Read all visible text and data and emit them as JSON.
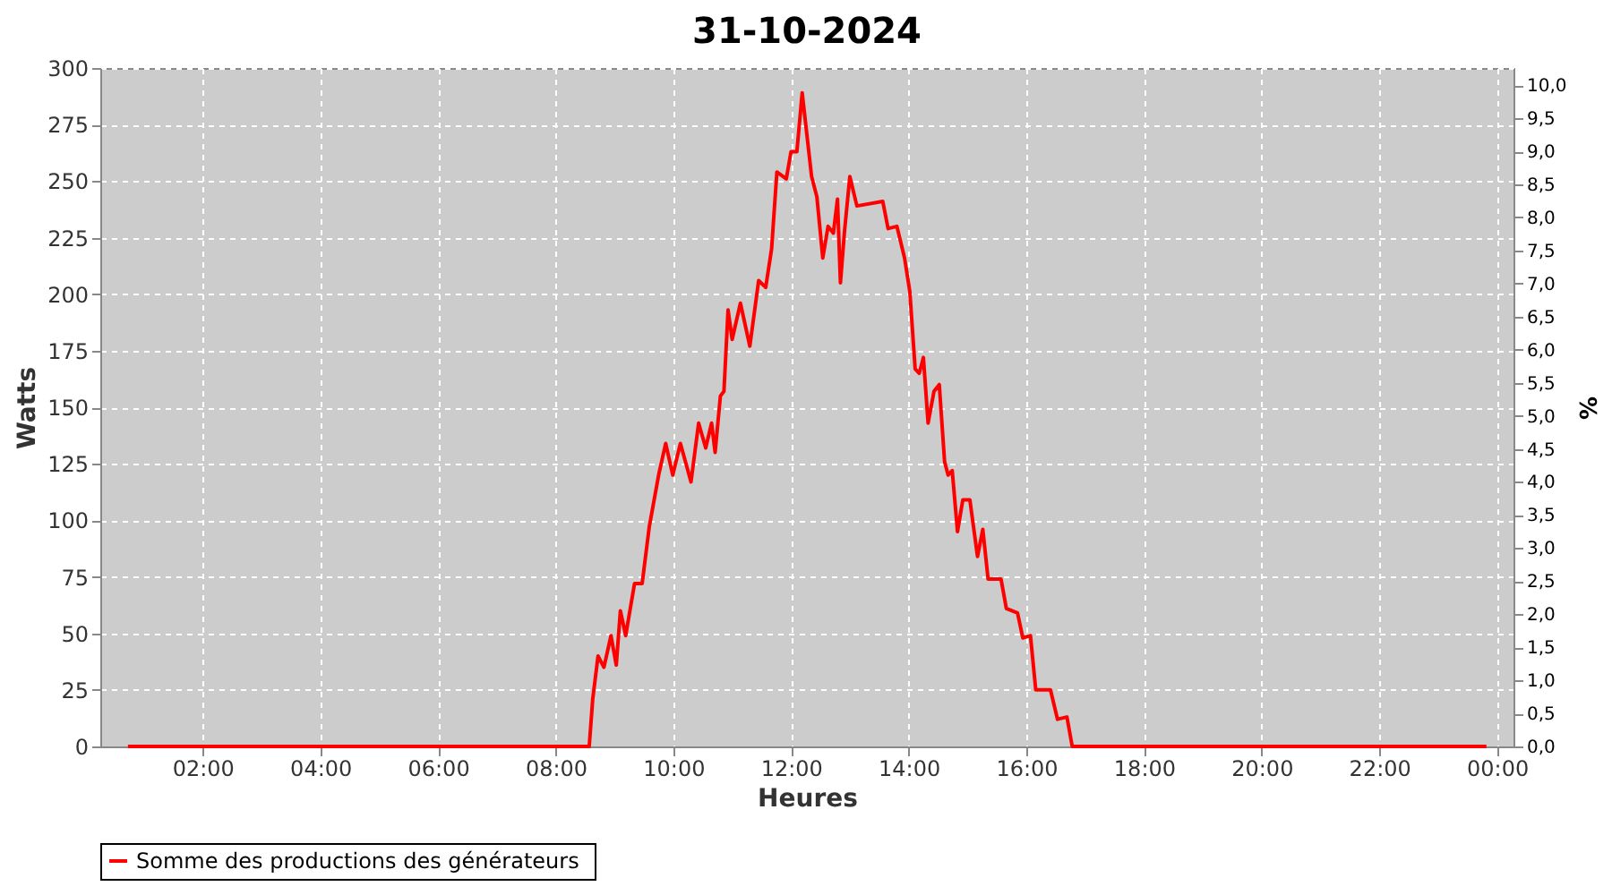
{
  "chart_data": {
    "type": "line",
    "title": "31-10-2024",
    "xlabel": "Heures",
    "ylabel": "Watts",
    "y2label": "%",
    "xlim": [
      0.26,
      24.28
    ],
    "xticks": [
      {
        "value": 2,
        "label": "02:00"
      },
      {
        "value": 4,
        "label": "04:00"
      },
      {
        "value": 6,
        "label": "06:00"
      },
      {
        "value": 8,
        "label": "08:00"
      },
      {
        "value": 10,
        "label": "10:00"
      },
      {
        "value": 12,
        "label": "12:00"
      },
      {
        "value": 14,
        "label": "14:00"
      },
      {
        "value": 16,
        "label": "16:00"
      },
      {
        "value": 18,
        "label": "18:00"
      },
      {
        "value": 20,
        "label": "20:00"
      },
      {
        "value": 22,
        "label": "22:00"
      },
      {
        "value": 24,
        "label": "00:00"
      }
    ],
    "ylim": [
      0,
      300
    ],
    "yticks": [
      0,
      25,
      50,
      75,
      100,
      125,
      150,
      175,
      200,
      225,
      250,
      275,
      300
    ],
    "y2lim": [
      0,
      10.26
    ],
    "y2ticks": [
      {
        "value": 0,
        "label": "0,0"
      },
      {
        "value": 0.5,
        "label": "0,5"
      },
      {
        "value": 1,
        "label": "1,0"
      },
      {
        "value": 1.5,
        "label": "1,5"
      },
      {
        "value": 2,
        "label": "2,0"
      },
      {
        "value": 2.5,
        "label": "2,5"
      },
      {
        "value": 3,
        "label": "3,0"
      },
      {
        "value": 3.5,
        "label": "3,5"
      },
      {
        "value": 4,
        "label": "4,0"
      },
      {
        "value": 4.5,
        "label": "4,5"
      },
      {
        "value": 5,
        "label": "5,0"
      },
      {
        "value": 5.5,
        "label": "5,5"
      },
      {
        "value": 6,
        "label": "6,0"
      },
      {
        "value": 6.5,
        "label": "6,5"
      },
      {
        "value": 7,
        "label": "7,0"
      },
      {
        "value": 7.5,
        "label": "7,5"
      },
      {
        "value": 8,
        "label": "8,0"
      },
      {
        "value": 8.5,
        "label": "8,5"
      },
      {
        "value": 9,
        "label": "9,0"
      },
      {
        "value": 9.5,
        "label": "9,5"
      },
      {
        "value": 10,
        "label": "10,0"
      }
    ],
    "grid": true,
    "legend": "bottom",
    "marker": "none",
    "line_style": "solid",
    "series": [
      {
        "name": "Somme des productions des  générateurs",
        "color": "#ff0000",
        "x": [
          0.73,
          8.57,
          8.63,
          8.72,
          8.82,
          8.94,
          9.03,
          9.1,
          9.19,
          9.34,
          9.47,
          9.59,
          9.75,
          9.87,
          9.99,
          10.12,
          10.3,
          10.43,
          10.55,
          10.65,
          10.71,
          10.8,
          10.86,
          10.93,
          11.0,
          11.14,
          11.3,
          11.45,
          11.57,
          11.67,
          11.76,
          11.92,
          12.0,
          12.1,
          12.19,
          12.35,
          12.44,
          12.54,
          12.63,
          12.72,
          12.79,
          12.84,
          12.91,
          13.0,
          13.12,
          13.56,
          13.65,
          13.8,
          13.93,
          14.02,
          14.11,
          14.18,
          14.25,
          14.33,
          14.43,
          14.52,
          14.61,
          14.67,
          14.74,
          14.83,
          14.92,
          15.04,
          15.17,
          15.26,
          15.35,
          15.57,
          15.66,
          15.85,
          15.94,
          16.07,
          16.16,
          16.41,
          16.53,
          16.69,
          16.78,
          23.82
        ],
        "values": [
          0,
          0,
          21,
          40,
          35,
          49,
          36,
          60,
          49,
          72,
          72,
          97,
          120,
          134,
          120,
          134,
          117,
          143,
          132,
          143,
          130,
          155,
          157,
          193,
          180,
          196,
          177,
          206,
          203,
          220,
          254,
          251,
          263,
          263,
          289,
          252,
          243,
          216,
          230,
          227,
          242,
          205,
          228,
          252,
          239,
          241,
          229,
          230,
          216,
          201,
          167,
          165,
          172,
          143,
          157,
          160,
          126,
          120,
          122,
          95,
          109,
          109,
          84,
          96,
          74,
          74,
          61,
          59,
          48,
          49,
          25,
          25,
          12,
          13,
          0,
          0
        ]
      }
    ]
  }
}
